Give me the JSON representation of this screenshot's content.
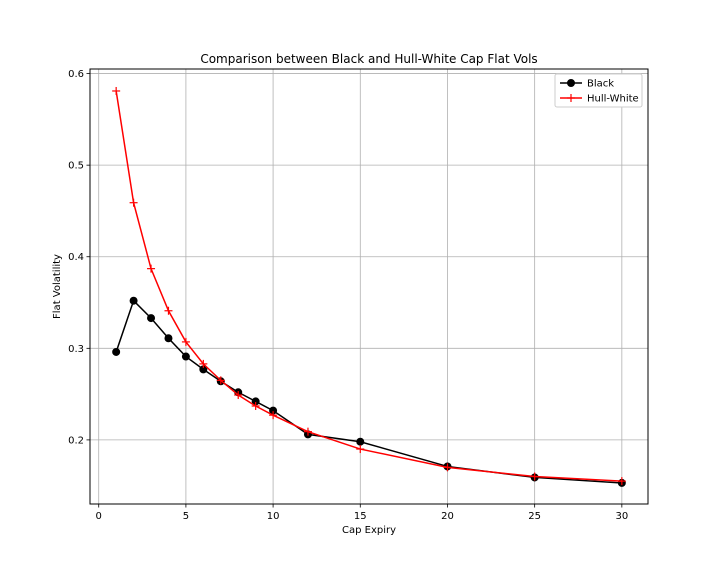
{
  "chart_data": {
    "type": "line",
    "title": "Comparison between Black and Hull-White Cap Flat Vols",
    "xlabel": "Cap Expiry",
    "ylabel": "Flat Volatility",
    "xlim": [
      -0.5,
      31.5
    ],
    "ylim": [
      0.13,
      0.605
    ],
    "xticks": [
      0,
      5,
      10,
      15,
      20,
      25,
      30
    ],
    "yticks": [
      0.2,
      0.3,
      0.4,
      0.5,
      0.6
    ],
    "xtick_labels": [
      "0",
      "5",
      "10",
      "15",
      "20",
      "25",
      "30"
    ],
    "ytick_labels": [
      "0.2",
      "0.3",
      "0.4",
      "0.5",
      "0.6"
    ],
    "grid": true,
    "legend_position": "top-right",
    "x": [
      1,
      2,
      3,
      4,
      5,
      6,
      7,
      8,
      9,
      10,
      12,
      15,
      20,
      25,
      30
    ],
    "series": [
      {
        "name": "Black",
        "color": "#000000",
        "marker": "circle",
        "values": [
          0.296,
          0.352,
          0.333,
          0.311,
          0.291,
          0.277,
          0.264,
          0.252,
          0.242,
          0.232,
          0.206,
          0.198,
          0.171,
          0.159,
          0.153
        ]
      },
      {
        "name": "Hull-White",
        "color": "#ff0000",
        "marker": "plus",
        "values": [
          0.581,
          0.459,
          0.387,
          0.341,
          0.307,
          0.283,
          0.265,
          0.249,
          0.237,
          0.227,
          0.209,
          0.19,
          0.17,
          0.16,
          0.155
        ]
      }
    ]
  }
}
